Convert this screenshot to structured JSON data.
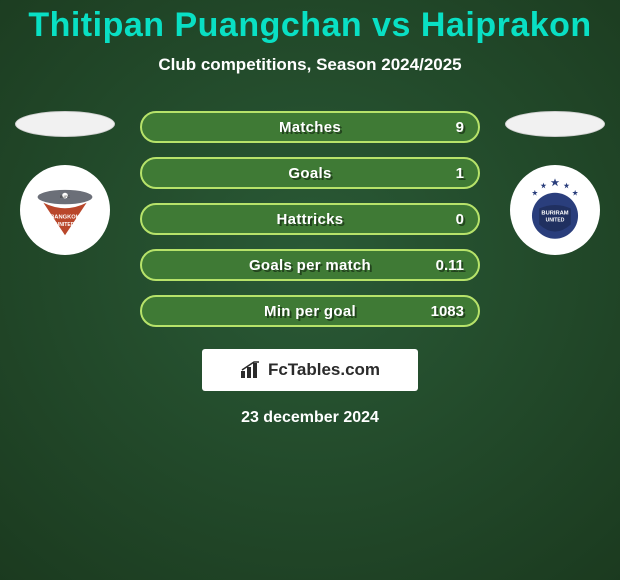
{
  "background": {
    "type": "radial-gradient",
    "inner_color": "#2a5a36",
    "outer_color": "#1b3a1f"
  },
  "title": {
    "text": "Thitipan Puangchan vs Haiprakon",
    "color": "#09e0c4",
    "fontsize": 34
  },
  "subtitle": {
    "text": "Club competitions, Season 2024/2025",
    "color": "#ffffff",
    "fontsize": 17
  },
  "stat_bar_style": {
    "fill": "#3f7a35",
    "border": "#b7e36a",
    "border_width": 2,
    "height": 32,
    "radius": 16
  },
  "stats": [
    {
      "label": "Matches",
      "value_right": "9"
    },
    {
      "label": "Goals",
      "value_right": "1"
    },
    {
      "label": "Hattricks",
      "value_right": "0"
    },
    {
      "label": "Goals per match",
      "value_right": "0.11"
    },
    {
      "label": "Min per goal",
      "value_right": "1083"
    }
  ],
  "left_club": {
    "name": "Bangkok United",
    "badge_bg": "#ffffff",
    "primary": "#6b6f78",
    "accent": "#b9472b"
  },
  "right_club": {
    "name": "Buriram United",
    "badge_bg": "#ffffff",
    "primary": "#2a3e7c",
    "accent": "#203060"
  },
  "brand": {
    "text": "FcTables.com",
    "icon": "bar-chart-icon",
    "box_bg": "#ffffff",
    "text_color": "#2b2b2b"
  },
  "date": "23 december 2024"
}
